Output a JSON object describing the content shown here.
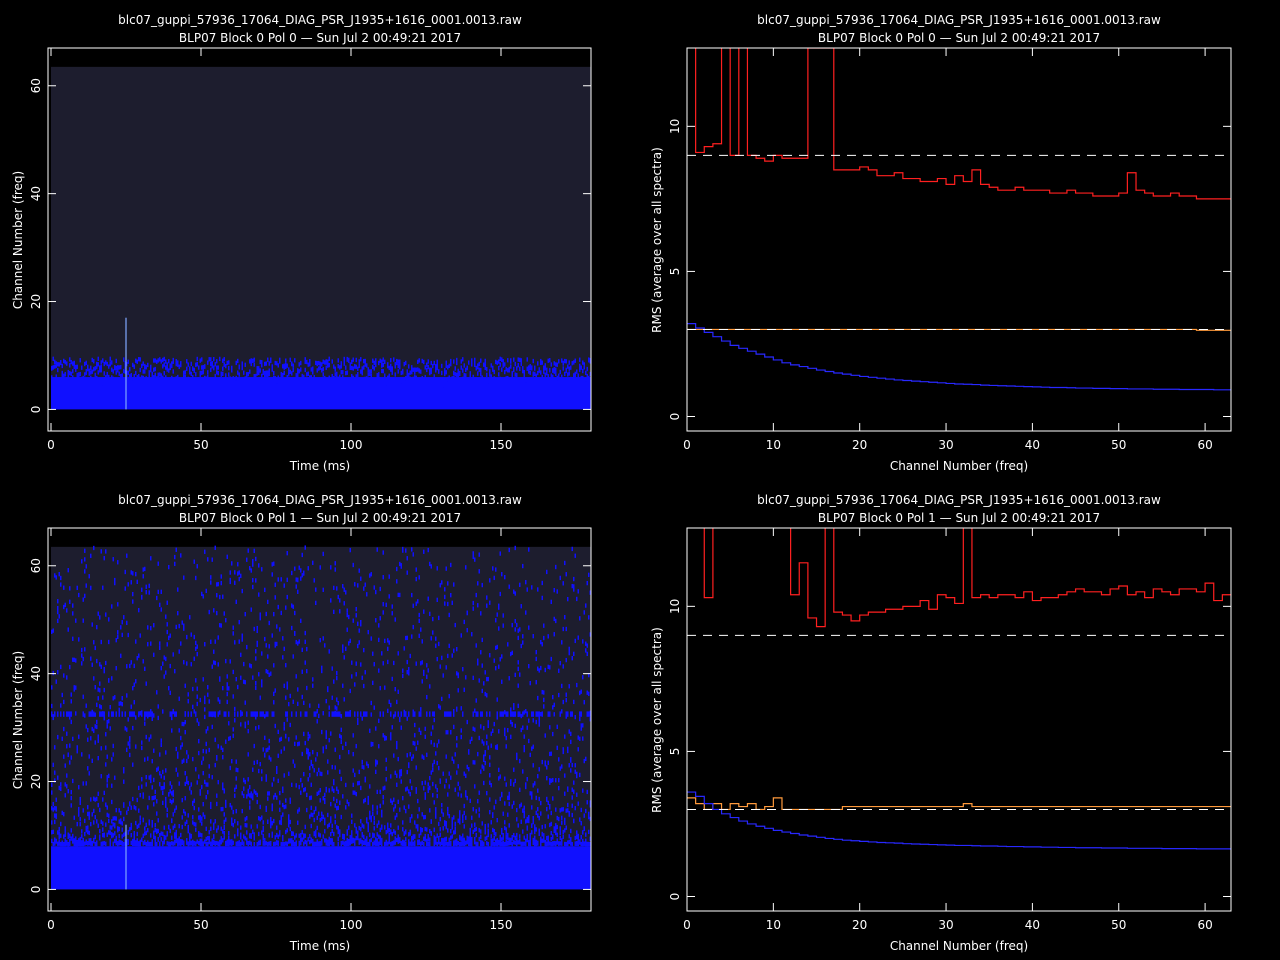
{
  "colors": {
    "background": "#000000",
    "waterfall_bg": "#1d1d2e",
    "waterfall_blue": "#1010ff",
    "rms_red": "#ff2020",
    "rms_orange": "#ff9a3c",
    "rms_blue": "#2828ff",
    "dashed_ref": "#ffffff"
  },
  "chart_data": [
    {
      "type": "heatmap",
      "panel": "top-left",
      "title": "blc07_guppi_57936_17064_DIAG_PSR_J1935+1616_0001.0013.raw",
      "subtitle": "BLP07 Block 0 Pol 0 — Sun Jul  2 00:49:21 2017",
      "xlabel": "Time (ms)",
      "ylabel": "Channel Number (freq)",
      "xlim": [
        -1,
        180
      ],
      "ylim": [
        -4,
        67
      ],
      "xticks": [
        "0",
        "50",
        "100",
        "150"
      ],
      "yticks": [
        "0",
        "20",
        "40",
        "60"
      ],
      "xtick_values": [
        0,
        50,
        100,
        150
      ],
      "ytick_values": [
        0,
        20,
        40,
        60
      ],
      "extent": {
        "x": [
          0,
          180
        ],
        "y": [
          0,
          63.5
        ]
      },
      "dense_band_top": 6,
      "speckle_band_top": 9,
      "pulse_time": 25,
      "pulse_height": 17
    },
    {
      "type": "line",
      "panel": "top-right",
      "title": "blc07_guppi_57936_17064_DIAG_PSR_J1935+1616_0001.0013.raw",
      "subtitle": "BLP07 Block 0 Pol 0 — Sun Jul  2 00:49:21 2017",
      "xlabel": "Channel Number (freq)",
      "ylabel": "RMS (average over all spectra)",
      "xlim": [
        0,
        63
      ],
      "ylim": [
        -0.5,
        12.7
      ],
      "xticks": [
        "0",
        "10",
        "20",
        "30",
        "40",
        "50",
        "60"
      ],
      "yticks": [
        "0",
        "5",
        "10"
      ],
      "xtick_values": [
        0,
        10,
        20,
        30,
        40,
        50,
        60
      ],
      "ytick_values": [
        0,
        5,
        10
      ],
      "reference_lines": [
        9,
        3
      ],
      "series": [
        {
          "color": "red",
          "step": true,
          "values": [
            13,
            9.1,
            9.3,
            9.4,
            13,
            9.0,
            13,
            9.0,
            8.9,
            8.8,
            9.0,
            8.9,
            8.9,
            8.9,
            12.7,
            12.7,
            12.7,
            8.5,
            8.5,
            8.5,
            8.6,
            8.5,
            8.3,
            8.3,
            8.4,
            8.2,
            8.2,
            8.1,
            8.1,
            8.2,
            8.0,
            8.3,
            8.1,
            8.5,
            8.0,
            7.9,
            7.8,
            7.8,
            7.9,
            7.8,
            7.8,
            7.8,
            7.7,
            7.7,
            7.8,
            7.7,
            7.7,
            7.6,
            7.6,
            7.6,
            7.7,
            8.4,
            7.8,
            7.7,
            7.6,
            7.6,
            7.7,
            7.6,
            7.6,
            7.5,
            7.5,
            7.5,
            7.5
          ]
        },
        {
          "color": "orange",
          "step": true,
          "values": [
            3.0,
            3.0,
            3.0,
            3.0,
            3.0,
            3.0,
            3.0,
            3.0,
            3.0,
            3.0,
            3.0,
            3.0,
            3.0,
            3.0,
            3.0,
            3.0,
            3.0,
            3.0,
            3.0,
            3.0,
            3.0,
            3.0,
            3.0,
            3.0,
            3.0,
            3.0,
            3.0,
            3.0,
            3.0,
            3.0,
            3.0,
            3.0,
            3.0,
            3.0,
            3.0,
            3.0,
            3.0,
            3.0,
            3.0,
            3.0,
            3.0,
            3.0,
            3.0,
            3.0,
            3.0,
            3.0,
            3.0,
            3.0,
            3.0,
            3.0,
            3.0,
            3.0,
            3.0,
            3.0,
            3.0,
            3.0,
            3.0,
            3.0,
            3.0,
            2.97,
            2.97,
            2.97,
            2.97
          ]
        },
        {
          "color": "blue",
          "step": true,
          "values": [
            3.2,
            3.05,
            2.9,
            2.75,
            2.6,
            2.45,
            2.35,
            2.25,
            2.15,
            2.05,
            1.95,
            1.85,
            1.78,
            1.72,
            1.66,
            1.6,
            1.55,
            1.5,
            1.46,
            1.42,
            1.38,
            1.35,
            1.32,
            1.29,
            1.26,
            1.24,
            1.22,
            1.2,
            1.18,
            1.16,
            1.14,
            1.12,
            1.11,
            1.1,
            1.08,
            1.07,
            1.06,
            1.05,
            1.04,
            1.03,
            1.02,
            1.01,
            1.0,
            1.0,
            0.99,
            0.98,
            0.98,
            0.97,
            0.97,
            0.96,
            0.96,
            0.95,
            0.95,
            0.95,
            0.94,
            0.94,
            0.94,
            0.93,
            0.93,
            0.93,
            0.93,
            0.92,
            0.92
          ]
        }
      ]
    },
    {
      "type": "heatmap",
      "panel": "bottom-left",
      "title": "blc07_guppi_57936_17064_DIAG_PSR_J1935+1616_0001.0013.raw",
      "subtitle": "BLP07 Block 0 Pol 1 — Sun Jul  2 00:49:21 2017",
      "xlabel": "Time (ms)",
      "ylabel": "Channel Number (freq)",
      "xlim": [
        -1,
        180
      ],
      "ylim": [
        -4,
        67
      ],
      "xticks": [
        "0",
        "50",
        "100",
        "150"
      ],
      "yticks": [
        "0",
        "20",
        "40",
        "60"
      ],
      "xtick_values": [
        0,
        50,
        100,
        150
      ],
      "ytick_values": [
        0,
        20,
        40,
        60
      ],
      "extent": {
        "x": [
          0,
          180
        ],
        "y": [
          0,
          63.5
        ]
      },
      "dense_band_top": 8,
      "speckle_band_top": 63,
      "striped_channel": 32,
      "pulse_time": 25,
      "pulse_height": 12
    },
    {
      "type": "line",
      "panel": "bottom-right",
      "title": "blc07_guppi_57936_17064_DIAG_PSR_J1935+1616_0001.0013.raw",
      "subtitle": "BLP07 Block 0 Pol 1 — Sun Jul  2 00:49:21 2017",
      "xlabel": "Channel Number (freq)",
      "ylabel": "RMS (average over all spectra)",
      "xlim": [
        0,
        63
      ],
      "ylim": [
        -0.5,
        12.7
      ],
      "xticks": [
        "0",
        "10",
        "20",
        "30",
        "40",
        "50",
        "60"
      ],
      "yticks": [
        "0",
        "5",
        "10"
      ],
      "xtick_values": [
        0,
        10,
        20,
        30,
        40,
        50,
        60
      ],
      "ytick_values": [
        0,
        5,
        10
      ],
      "reference_lines": [
        9,
        3
      ],
      "series": [
        {
          "color": "red",
          "step": true,
          "values": [
            13,
            13,
            10.3,
            13,
            13,
            13,
            13,
            13,
            13,
            13,
            13,
            13,
            10.4,
            11.5,
            9.6,
            9.3,
            13,
            9.8,
            9.7,
            9.5,
            9.7,
            9.8,
            9.8,
            9.9,
            9.9,
            10.0,
            10.0,
            10.2,
            9.9,
            10.4,
            10.3,
            10.1,
            13,
            10.3,
            10.4,
            10.3,
            10.4,
            10.4,
            10.3,
            10.5,
            10.2,
            10.3,
            10.3,
            10.4,
            10.5,
            10.6,
            10.5,
            10.5,
            10.4,
            10.6,
            10.7,
            10.4,
            10.5,
            10.3,
            10.6,
            10.5,
            10.4,
            10.6,
            10.6,
            10.5,
            10.8,
            10.2,
            10.4
          ]
        },
        {
          "color": "orange",
          "step": true,
          "values": [
            3.4,
            3.2,
            3.0,
            3.2,
            3.0,
            3.2,
            3.1,
            3.2,
            3.0,
            3.1,
            3.4,
            3.0,
            3.0,
            3.0,
            3.0,
            3.0,
            3.0,
            3.0,
            3.1,
            3.1,
            3.1,
            3.1,
            3.1,
            3.1,
            3.1,
            3.1,
            3.1,
            3.1,
            3.1,
            3.1,
            3.1,
            3.1,
            3.2,
            3.1,
            3.1,
            3.1,
            3.1,
            3.1,
            3.1,
            3.1,
            3.1,
            3.1,
            3.1,
            3.1,
            3.1,
            3.1,
            3.1,
            3.1,
            3.1,
            3.1,
            3.1,
            3.1,
            3.1,
            3.1,
            3.1,
            3.1,
            3.1,
            3.1,
            3.1,
            3.1,
            3.1,
            3.1,
            3.1
          ]
        },
        {
          "color": "blue",
          "step": true,
          "values": [
            3.6,
            3.45,
            3.2,
            3.0,
            2.85,
            2.72,
            2.6,
            2.5,
            2.42,
            2.35,
            2.28,
            2.22,
            2.17,
            2.12,
            2.08,
            2.04,
            2.0,
            1.97,
            1.94,
            1.92,
            1.9,
            1.88,
            1.86,
            1.85,
            1.84,
            1.82,
            1.81,
            1.8,
            1.79,
            1.78,
            1.77,
            1.76,
            1.76,
            1.75,
            1.74,
            1.74,
            1.73,
            1.72,
            1.72,
            1.71,
            1.71,
            1.7,
            1.7,
            1.69,
            1.69,
            1.68,
            1.68,
            1.68,
            1.67,
            1.67,
            1.67,
            1.66,
            1.66,
            1.66,
            1.66,
            1.65,
            1.65,
            1.65,
            1.65,
            1.64,
            1.64,
            1.64,
            1.64
          ]
        }
      ]
    }
  ]
}
